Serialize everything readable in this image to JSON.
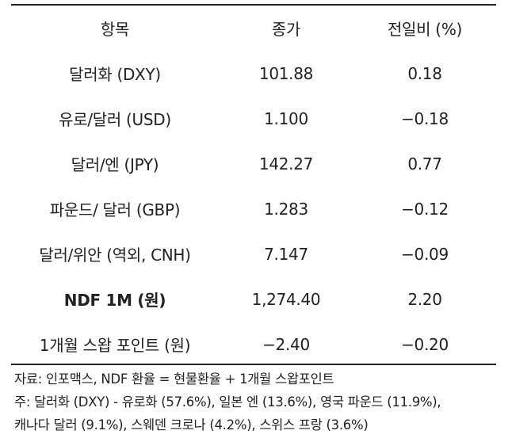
{
  "table": {
    "headers": [
      "항목",
      "종가",
      "전일비 (%)"
    ],
    "rows": [
      {
        "item": "달러화 (DXY)",
        "close": "101.88",
        "change": "0.18",
        "bold": false
      },
      {
        "item": "유로/달러 (USD)",
        "close": "1.100",
        "change": "−0.18",
        "bold": false
      },
      {
        "item": "달러/엔 (JPY)",
        "close": "142.27",
        "change": "0.77",
        "bold": false
      },
      {
        "item": "파운드/ 달러 (GBP)",
        "close": "1.283",
        "change": "−0.12",
        "bold": false
      },
      {
        "item": "달러/위안 (역외, CNH)",
        "close": "7.147",
        "change": "−0.09",
        "bold": false
      },
      {
        "item": "NDF 1M (원)",
        "close": "1,274.40",
        "change": "2.20",
        "bold": true
      },
      {
        "item": "1개월 스왑 포인트 (원)",
        "close": "−2.40",
        "change": "−0.20",
        "bold": false
      }
    ]
  },
  "notes": {
    "source": "자료: 인포맥스, NDF 환율 = 현물환율 + 1개월 스왑포인트",
    "note_line1": "주: 달러화 (DXY) - 유로화 (57.6%), 일본 엔 (13.6%), 영국 파운드 (11.9%),",
    "note_line2": "캐나다 달러 (9.1%), 스웨덴 크로나 (4.2%), 스위스 프랑 (3.6%)"
  },
  "colors": {
    "text": "#222222",
    "rule": "#222222",
    "background": "#ffffff"
  }
}
